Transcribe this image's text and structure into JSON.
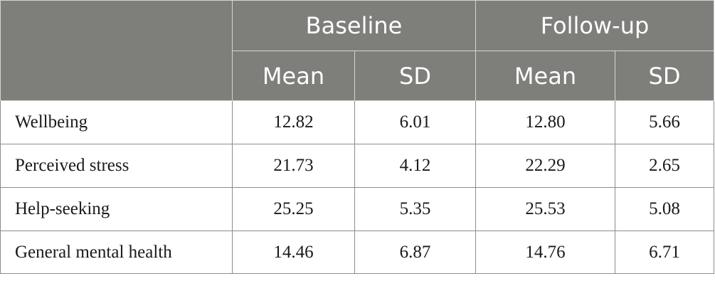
{
  "table": {
    "group_headers": [
      "Baseline",
      "Follow-up"
    ],
    "sub_headers": [
      "Mean",
      "SD",
      "Mean",
      "SD"
    ],
    "rows": [
      {
        "label": "Wellbeing",
        "values": [
          "12.82",
          "6.01",
          "12.80",
          "5.66"
        ]
      },
      {
        "label": "Perceived stress",
        "values": [
          "21.73",
          "4.12",
          "22.29",
          "2.65"
        ]
      },
      {
        "label": "Help-seeking",
        "values": [
          "25.25",
          "5.35",
          "25.53",
          "5.08"
        ]
      },
      {
        "label": "General mental health",
        "values": [
          "14.46",
          "6.87",
          "14.76",
          "6.71"
        ]
      }
    ]
  }
}
